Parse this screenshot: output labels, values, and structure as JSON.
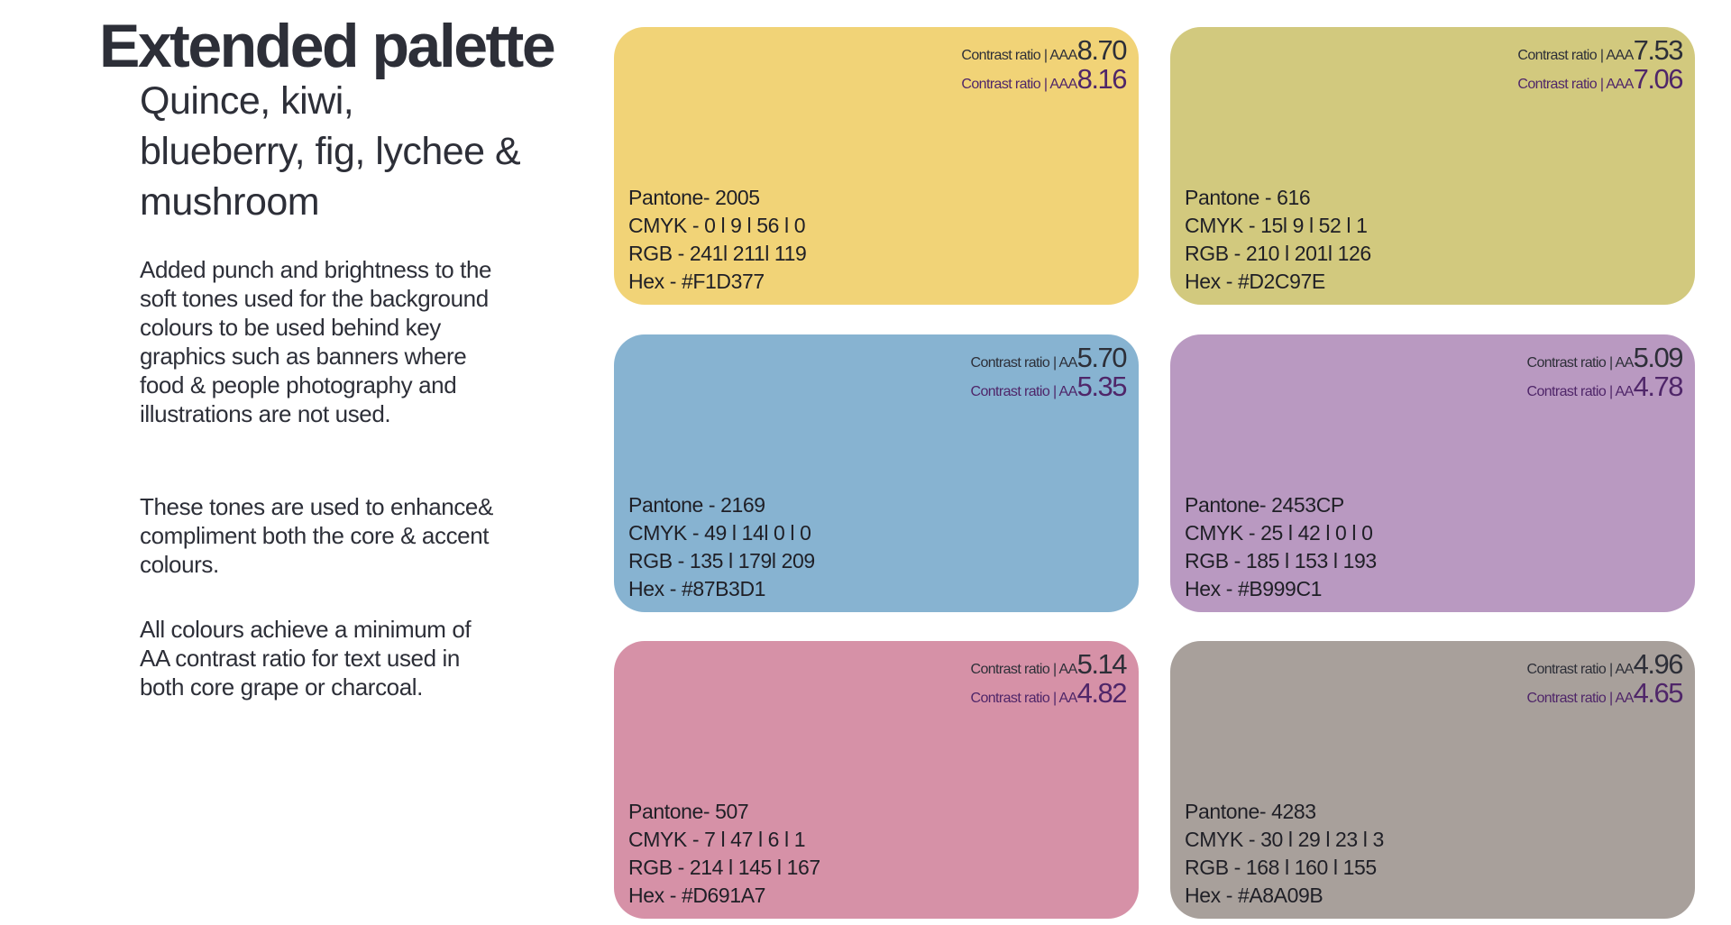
{
  "title": "Extended palette",
  "subtitle": "Quince, kiwi, blueberry, fig, lychee & mushroom",
  "paragraphs": [
    "Added punch and brightness to the soft tones used for the background colours to be used behind key graphics such as banners where food & people photography and illustrations are not used.",
    "These tones are used to enhance& compliment both the core & accent colours.",
    "All colours achieve a minimum of AA contrast ratio for text used in both core grape or charcoal."
  ],
  "cards": [
    {
      "color": "#F1D377",
      "contrast": [
        {
          "label": "Contrast ratio  |  AAA",
          "value": "8.70"
        },
        {
          "label": "Contrast ratio  |  AAA",
          "value": "8.16"
        }
      ],
      "pantone": "Pantone- 2005",
      "cmyk": "CMYK - 0 l 9 l 56 l 0",
      "rgb": "RGB - 241l  211l  119",
      "hex": "Hex - #F1D377"
    },
    {
      "color": "#D2C97E",
      "contrast": [
        {
          "label": "Contrast ratio  |  AAA",
          "value": "7.53"
        },
        {
          "label": "Contrast ratio  |  AAA",
          "value": "7.06"
        }
      ],
      "pantone": "Pantone - 616",
      "cmyk": "CMYK - 15l 9 l 52 l 1",
      "rgb": "RGB - 210 l 201l  126",
      "hex": "Hex - #D2C97E"
    },
    {
      "color": "#87B3D1",
      "contrast": [
        {
          "label": "Contrast ratio  |  AA",
          "value": "5.70"
        },
        {
          "label": "Contrast ratio  |  AA",
          "value": "5.35"
        }
      ],
      "pantone": "Pantone - 2169",
      "cmyk": "CMYK - 49 l 14l 0 l 0",
      "rgb": "RGB - 135 l 179l 209",
      "hex": "Hex - #87B3D1"
    },
    {
      "color": "#B999C1",
      "contrast": [
        {
          "label": "Contrast ratio  |  AA",
          "value": "5.09"
        },
        {
          "label": "Contrast ratio  |  AA",
          "value": "4.78"
        }
      ],
      "pantone": "Pantone- 2453CP",
      "cmyk": "CMYK - 25 l 42 l 0 l 0",
      "rgb": "RGB - 185 l 153 l 193",
      "hex": "Hex - #B999C1"
    },
    {
      "color": "#D691A7",
      "contrast": [
        {
          "label": "Contrast ratio  |  AA",
          "value": "5.14"
        },
        {
          "label": "Contrast ratio  |  AA",
          "value": "4.82"
        }
      ],
      "pantone": "Pantone- 507",
      "cmyk": "CMYK - 7 l 47 l 6 l 1",
      "rgb": "RGB - 214 l 145 l 167",
      "hex": "Hex - #D691A7"
    },
    {
      "color": "#A8A09B",
      "contrast": [
        {
          "label": "Contrast ratio  |  AA",
          "value": "4.96"
        },
        {
          "label": "Contrast ratio  |  AA",
          "value": "4.65"
        }
      ],
      "pantone": "Pantone- 4283",
      "cmyk": "CMYK - 30 l 29 l 23 l 3",
      "rgb": "RGB - 168 l 160 l 155",
      "hex": "Hex - #A8A09B"
    }
  ]
}
